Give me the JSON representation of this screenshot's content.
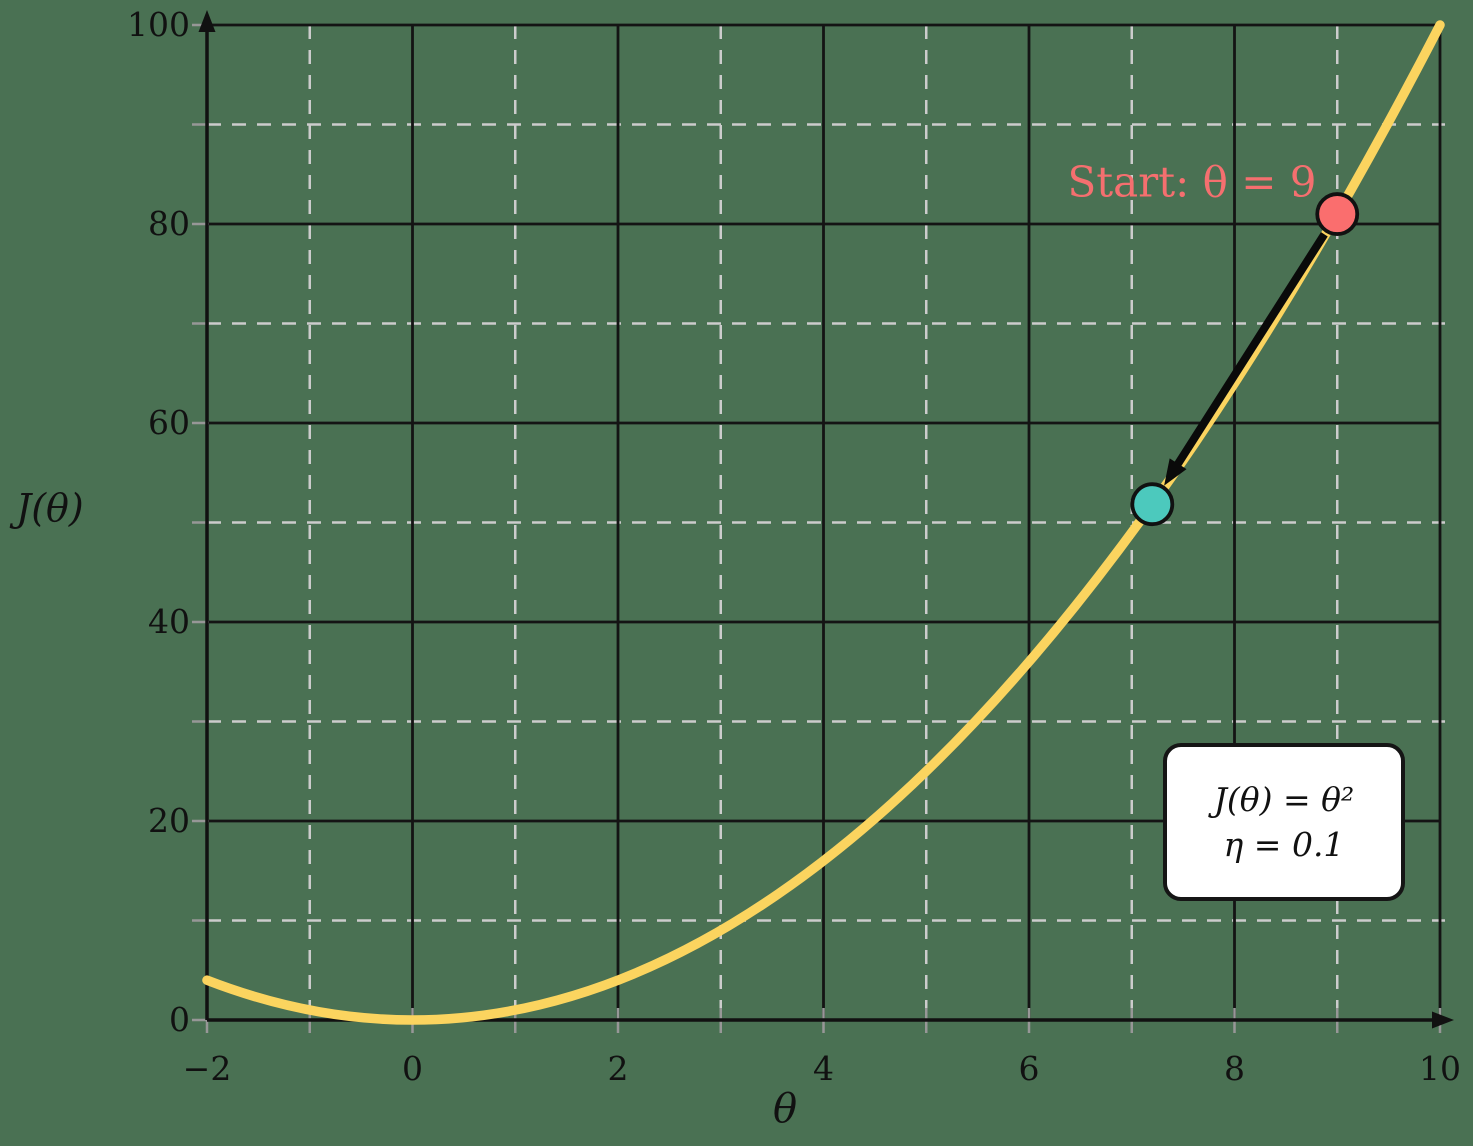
{
  "colors": {
    "background": "#4a7153",
    "curve": "#fbd45f",
    "grid_solid": "#141414",
    "grid_dashed": "#cccccc",
    "axis": "#111111",
    "tick": "#979797",
    "text": "#111111",
    "start_point": "#fa6e6e",
    "start_label": "#f56f6f",
    "step_point": "#4cc9bd",
    "arrow": "#0a0a0a",
    "annotation_bg": "#ffffff",
    "annotation_border": "#151515"
  },
  "labels": {
    "ylabel": "J(θ)",
    "xlabel": "θ",
    "start": "Start: θ = 9"
  },
  "annotation": {
    "line1": "J(θ) = θ²",
    "line2": "η = 0.1"
  },
  "chart_data": {
    "type": "line",
    "title": "",
    "xlabel": "θ",
    "ylabel": "J(θ)",
    "expression": "J(θ) = θ²",
    "learning_rate": 0.1,
    "xlim": [
      -2,
      10
    ],
    "ylim": [
      0,
      100
    ],
    "x_ticks": [
      {
        "v": -2,
        "label": "−2"
      },
      {
        "v": 0,
        "label": "0"
      },
      {
        "v": 2,
        "label": "2"
      },
      {
        "v": 4,
        "label": "4"
      },
      {
        "v": 6,
        "label": "6"
      },
      {
        "v": 8,
        "label": "8"
      },
      {
        "v": 10,
        "label": "10"
      }
    ],
    "y_ticks": [
      {
        "v": 0,
        "label": "0"
      },
      {
        "v": 20,
        "label": "20"
      },
      {
        "v": 40,
        "label": "40"
      },
      {
        "v": 60,
        "label": "60"
      },
      {
        "v": 80,
        "label": "80"
      },
      {
        "v": 100,
        "label": "100"
      }
    ],
    "x_tick_marks": [
      -2,
      -1,
      0,
      1,
      2,
      3,
      4,
      5,
      6,
      7,
      8,
      9,
      10
    ],
    "y_tick_marks": [
      0,
      10,
      20,
      30,
      40,
      50,
      60,
      70,
      80,
      90,
      100
    ],
    "grid": {
      "solid_x": [
        0,
        2,
        4,
        6,
        8,
        10
      ],
      "solid_y": [
        20,
        40,
        60,
        80,
        100
      ],
      "dashed_x": [
        -1,
        1,
        3,
        5,
        7,
        9
      ],
      "dashed_y": [
        10,
        30,
        50,
        70,
        90
      ]
    },
    "curve": {
      "start": [
        -2,
        4
      ],
      "control": [
        4,
        -20
      ],
      "end": [
        10,
        100
      ]
    },
    "points": [
      {
        "name": "start-point",
        "theta": 9,
        "J": 81,
        "color_key": "start_point",
        "label": "Start: θ = 9"
      },
      {
        "name": "step-point",
        "theta": 7.2,
        "J": 51.84,
        "color_key": "step_point",
        "label": ""
      }
    ],
    "gradient_step": {
      "from": [
        9,
        81
      ],
      "to": [
        7.2,
        51.84
      ]
    }
  }
}
